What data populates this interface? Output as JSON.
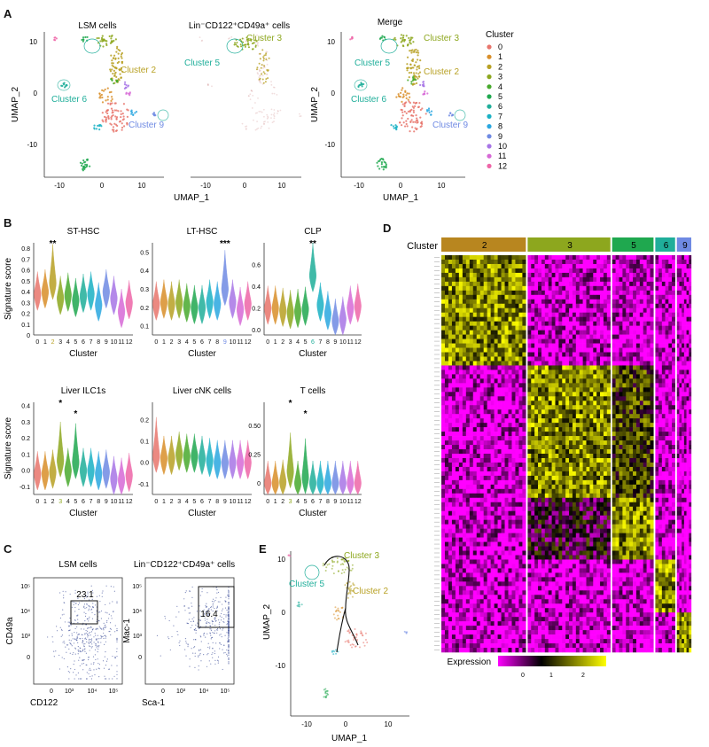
{
  "panel_labels": {
    "A": "A",
    "B": "B",
    "C": "C",
    "D": "D",
    "E": "E"
  },
  "panel_a": {
    "titles": [
      "LSM cells",
      "Lin⁻CD122⁺CD49a⁺ cells",
      "Merge"
    ],
    "xlabel": "UMAP_1",
    "ylabel": "UMAP_2",
    "xticks": [
      "-10",
      "0",
      "10"
    ],
    "yticks": [
      "10",
      "0",
      "-10"
    ],
    "cluster_labels": {
      "c2": "Cluster 2",
      "c3": "Cluster 3",
      "c5": "Cluster 5",
      "c6": "Cluster 6",
      "c9": "Cluster 9"
    },
    "legend_title": "Cluster",
    "legend": [
      {
        "label": "0",
        "color": "#e8756c"
      },
      {
        "label": "1",
        "color": "#d98f2a"
      },
      {
        "label": "2",
        "color": "#b8a124"
      },
      {
        "label": "3",
        "color": "#8da71e"
      },
      {
        "label": "4",
        "color": "#48aa2d"
      },
      {
        "label": "5",
        "color": "#1fa84f"
      },
      {
        "label": "6",
        "color": "#1fae9a"
      },
      {
        "label": "7",
        "color": "#1ab1c4"
      },
      {
        "label": "8",
        "color": "#2aa7e0"
      },
      {
        "label": "9",
        "color": "#6f8ae3"
      },
      {
        "label": "10",
        "color": "#a775e6"
      },
      {
        "label": "11",
        "color": "#d769d6"
      },
      {
        "label": "12",
        "color": "#ee66a8"
      }
    ]
  },
  "panel_b": {
    "ylabel": "Signature score",
    "xlabel": "Cluster",
    "categories": [
      "0",
      "1",
      "2",
      "3",
      "4",
      "5",
      "6",
      "7",
      "8",
      "9",
      "10",
      "11",
      "12"
    ],
    "plots": [
      {
        "title": "ST-HSC",
        "yticks": [
          "0",
          "0.1",
          "0.2",
          "0.3",
          "0.4",
          "0.5",
          "0.6",
          "0.7",
          "0.8"
        ],
        "ylim": [
          0,
          0.85
        ],
        "sig": "**",
        "sig_index": 2,
        "color_index": 2,
        "values": [
          0.38,
          0.4,
          0.48,
          0.34,
          0.37,
          0.32,
          0.36,
          0.38,
          0.28,
          0.4,
          0.34,
          0.22,
          0.3
        ]
      },
      {
        "title": "LT-HSC",
        "yticks": [
          "0.1",
          "0.2",
          "0.3",
          "0.4",
          "0.5"
        ],
        "ylim": [
          0.05,
          0.55
        ],
        "sig": "***",
        "sig_index": 9,
        "color_index": 9,
        "values": [
          0.22,
          0.23,
          0.22,
          0.23,
          0.21,
          0.2,
          0.2,
          0.23,
          0.22,
          0.3,
          0.23,
          0.19,
          0.22
        ]
      },
      {
        "title": "CLP",
        "yticks": [
          "0.0",
          "0.2",
          "0.4",
          "0.6"
        ],
        "ylim": [
          -0.05,
          0.8
        ],
        "sig": "**",
        "sig_index": 6,
        "color_index": 6,
        "values": [
          0.2,
          0.2,
          0.18,
          0.16,
          0.17,
          0.19,
          0.5,
          0.23,
          0.15,
          0.08,
          0.1,
          0.2,
          0.22
        ]
      },
      {
        "title": "Liver ILC1s",
        "yticks": [
          "-0.1",
          "0.0",
          "0.1",
          "0.2",
          "0.3",
          "0.4"
        ],
        "ylim": [
          -0.15,
          0.42
        ],
        "sig": "*",
        "sig_index": 3,
        "sig2": "*",
        "sig2_index": 5,
        "color_index": 3,
        "values": [
          -0.02,
          -0.02,
          -0.01,
          0.06,
          0.0,
          0.05,
          0.0,
          0.0,
          -0.02,
          -0.01,
          -0.05,
          -0.06,
          -0.03
        ]
      },
      {
        "title": "Liver cNK cells",
        "yticks": [
          "-0.1",
          "0.0",
          "0.1",
          "0.2"
        ],
        "ylim": [
          -0.15,
          0.28
        ],
        "sig": "",
        "sig_index": 0,
        "color_index": 0,
        "values": [
          0.03,
          0.02,
          0.02,
          0.04,
          0.03,
          0.03,
          0.02,
          0.01,
          0.0,
          0.0,
          0.0,
          0.0,
          0.0
        ]
      },
      {
        "title": "T cells",
        "yticks": [
          "0",
          "0.25",
          "0.50"
        ],
        "ylim": [
          -0.1,
          0.7
        ],
        "sig": "*",
        "sig_index": 3,
        "sig2": "*",
        "sig2_index": 5,
        "color_index": 3,
        "values": [
          0.0,
          0.0,
          0.01,
          0.1,
          0.0,
          0.05,
          0.0,
          0.0,
          0.0,
          0.0,
          0.0,
          0.0,
          0.0
        ]
      }
    ]
  },
  "panel_c": {
    "plot1": {
      "title": "LSM cells",
      "xlabel": "CD122",
      "ylabel": "CD49a",
      "gate_value": "23.1",
      "xticks": [
        "0",
        "10³",
        "10⁴",
        "10⁵"
      ],
      "yticks": [
        "10⁵",
        "10⁴",
        "10³",
        "0"
      ]
    },
    "plot2": {
      "title": "Lin⁻CD122⁺CD49a⁺ cells",
      "xlabel": "Sca-1",
      "ylabel": "Mac-1",
      "gate_value": "16.4",
      "xticks": [
        "0",
        "10³",
        "10⁴",
        "10⁵"
      ],
      "yticks": [
        "10⁵",
        "10⁴",
        "10³",
        "0"
      ]
    }
  },
  "panel_d": {
    "header_label": "Cluster",
    "groups": [
      {
        "label": "2",
        "color": "#b8861f",
        "weight": 96
      },
      {
        "label": "3",
        "color": "#8da71e",
        "weight": 94
      },
      {
        "label": "5",
        "color": "#1fa84f",
        "weight": 48
      },
      {
        "label": "6",
        "color": "#1fae9a",
        "weight": 24
      },
      {
        "label": "9",
        "color": "#6f8ae3",
        "weight": 18
      }
    ],
    "colorbar_label": "Expression",
    "colorbar_ticks": [
      "0",
      "1",
      "2"
    ],
    "colors": {
      "low": "#ff00ff",
      "mid": "#000000",
      "high": "#ffff00"
    }
  },
  "panel_e": {
    "xlabel": "UMAP_1",
    "ylabel": "UMAP_2",
    "xticks": [
      "-10",
      "0",
      "10"
    ],
    "yticks": [
      "10",
      "0",
      "-10"
    ],
    "cluster_labels": {
      "c3": "Cluster 3",
      "c5": "Cluster 5",
      "c2": "Cluster 2"
    }
  }
}
